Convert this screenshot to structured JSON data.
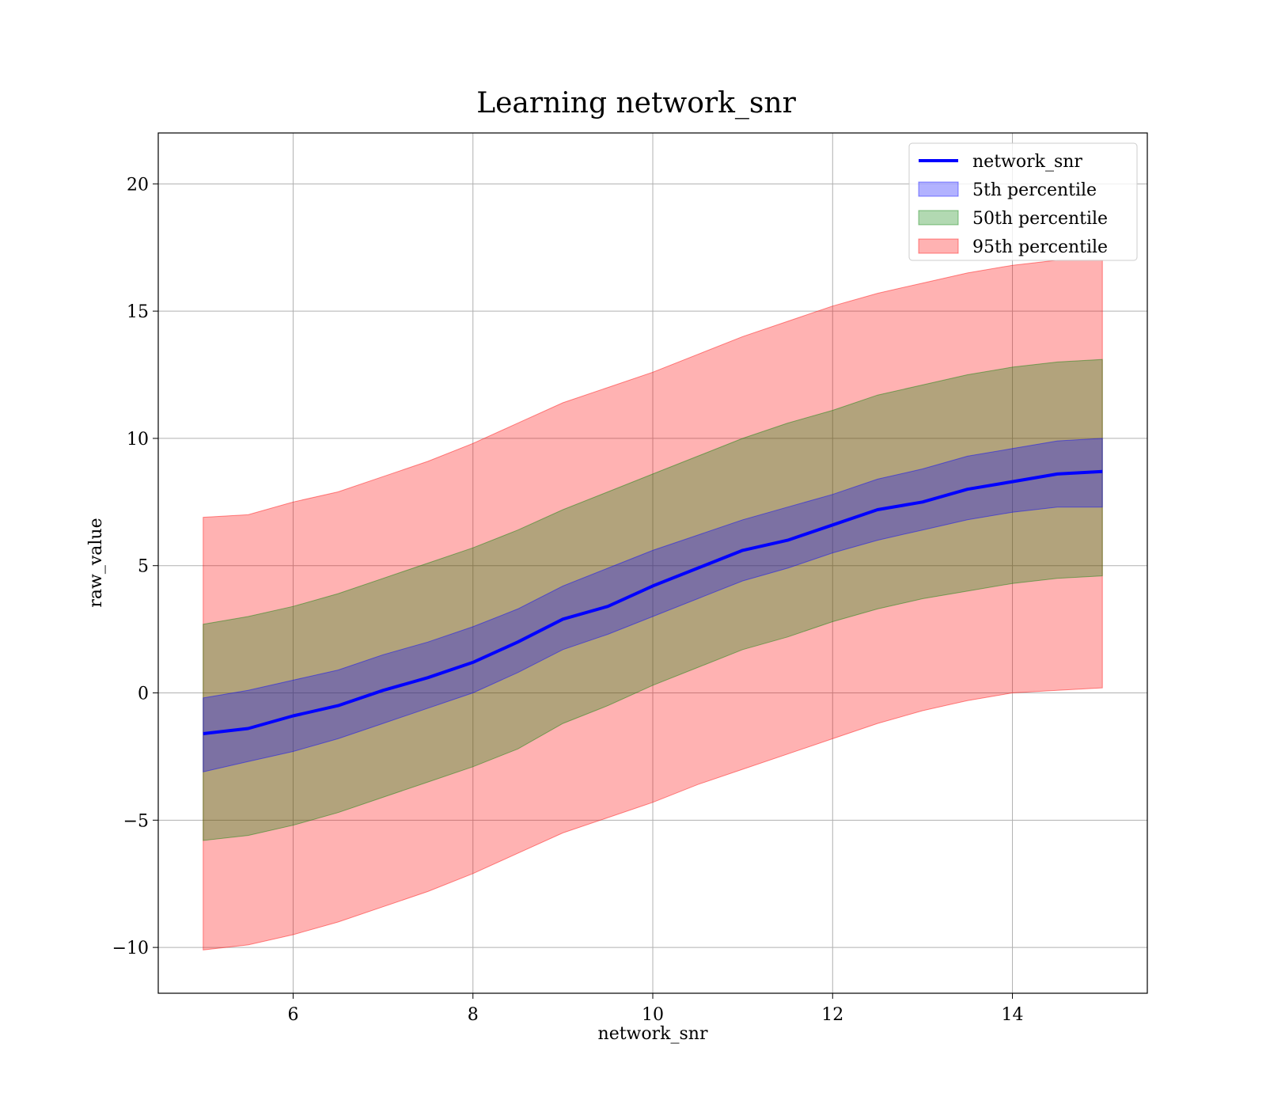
{
  "chart_data": {
    "type": "area",
    "title": "Learning network_snr",
    "xlabel": "network_snr",
    "ylabel": "raw_value",
    "xlim": [
      4.5,
      15.5
    ],
    "ylim": [
      -11.8,
      22
    ],
    "xticks": [
      6,
      8,
      10,
      12,
      14
    ],
    "yticks": [
      -10,
      -5,
      0,
      5,
      10,
      15,
      20
    ],
    "xtick_labels": [
      "6",
      "8",
      "10",
      "12",
      "14"
    ],
    "ytick_labels": [
      "−10",
      "−5",
      "0",
      "5",
      "10",
      "15",
      "20"
    ],
    "grid": true,
    "legend_position": "top-right",
    "x": [
      5,
      5.5,
      6,
      6.5,
      7,
      7.5,
      8,
      8.5,
      9,
      9.5,
      10,
      10.5,
      11,
      11.5,
      12,
      12.5,
      13,
      13.5,
      14,
      14.5,
      15
    ],
    "series": [
      {
        "name": "network_snr",
        "kind": "line",
        "color": "#0000ff",
        "values": [
          -1.6,
          -1.4,
          -0.9,
          -0.5,
          0.1,
          0.6,
          1.2,
          2.0,
          2.9,
          3.4,
          4.2,
          4.9,
          5.6,
          6.0,
          6.6,
          7.2,
          7.5,
          8.0,
          8.3,
          8.6,
          8.7
        ]
      },
      {
        "name": "5th percentile",
        "kind": "band",
        "color": "#0000ff",
        "alpha": 0.3,
        "lower": [
          -3.1,
          -2.7,
          -2.3,
          -1.8,
          -1.2,
          -0.6,
          0.0,
          0.8,
          1.7,
          2.3,
          3.0,
          3.7,
          4.4,
          4.9,
          5.5,
          6.0,
          6.4,
          6.8,
          7.1,
          7.3,
          7.3
        ],
        "upper": [
          -0.2,
          0.1,
          0.5,
          0.9,
          1.5,
          2.0,
          2.6,
          3.3,
          4.2,
          4.9,
          5.6,
          6.2,
          6.8,
          7.3,
          7.8,
          8.4,
          8.8,
          9.3,
          9.6,
          9.9,
          10.0
        ]
      },
      {
        "name": "50th percentile",
        "kind": "band",
        "color": "#008000",
        "alpha": 0.3,
        "lower": [
          -5.8,
          -5.6,
          -5.2,
          -4.7,
          -4.1,
          -3.5,
          -2.9,
          -2.2,
          -1.2,
          -0.5,
          0.3,
          1.0,
          1.7,
          2.2,
          2.8,
          3.3,
          3.7,
          4.0,
          4.3,
          4.5,
          4.6
        ],
        "upper": [
          2.7,
          3.0,
          3.4,
          3.9,
          4.5,
          5.1,
          5.7,
          6.4,
          7.2,
          7.9,
          8.6,
          9.3,
          10.0,
          10.6,
          11.1,
          11.7,
          12.1,
          12.5,
          12.8,
          13.0,
          13.1
        ]
      },
      {
        "name": "95th percentile",
        "kind": "band",
        "color": "#ff0000",
        "alpha": 0.3,
        "lower": [
          -10.1,
          -9.9,
          -9.5,
          -9.0,
          -8.4,
          -7.8,
          -7.1,
          -6.3,
          -5.5,
          -4.9,
          -4.3,
          -3.6,
          -3.0,
          -2.4,
          -1.8,
          -1.2,
          -0.7,
          -0.3,
          0.0,
          0.1,
          0.2
        ],
        "upper": [
          6.9,
          7.0,
          7.5,
          7.9,
          8.5,
          9.1,
          9.8,
          10.6,
          11.4,
          12.0,
          12.6,
          13.3,
          14.0,
          14.6,
          15.2,
          15.7,
          16.1,
          16.5,
          16.8,
          17.0,
          17.0
        ]
      }
    ]
  }
}
